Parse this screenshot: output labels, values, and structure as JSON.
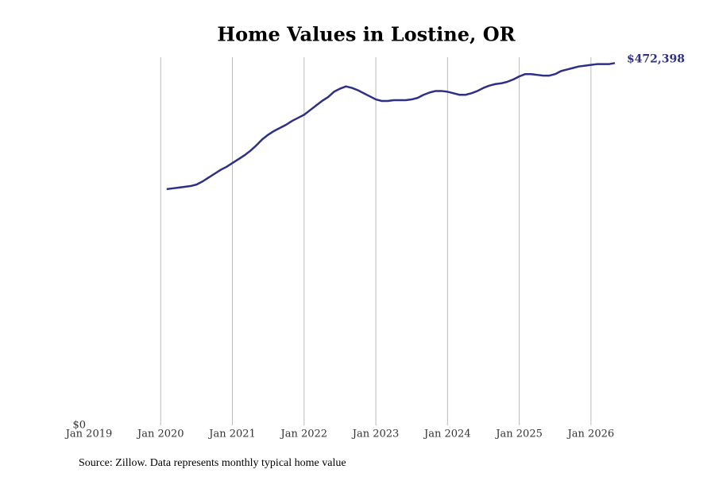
{
  "chart_data": {
    "type": "line",
    "title": "Home Values in Lostine, OR",
    "source": "Source: Zillow. Data represents monthly typical home value",
    "annotation": "$472,398",
    "x": [
      "2020-02",
      "2020-03",
      "2020-04",
      "2020-05",
      "2020-06",
      "2020-07",
      "2020-08",
      "2020-09",
      "2020-10",
      "2020-11",
      "2020-12",
      "2021-01",
      "2021-02",
      "2021-03",
      "2021-04",
      "2021-05",
      "2021-06",
      "2021-07",
      "2021-08",
      "2021-09",
      "2021-10",
      "2021-11",
      "2021-12",
      "2022-01",
      "2022-02",
      "2022-03",
      "2022-04",
      "2022-05",
      "2022-06",
      "2022-07",
      "2022-08",
      "2022-09",
      "2022-10",
      "2022-11",
      "2022-12",
      "2023-01",
      "2023-02",
      "2023-03",
      "2023-04",
      "2023-05",
      "2023-06",
      "2023-07",
      "2023-08",
      "2023-09",
      "2023-10",
      "2023-11",
      "2023-12",
      "2024-01",
      "2024-02",
      "2024-03",
      "2024-04",
      "2024-05",
      "2024-06",
      "2024-07",
      "2024-08",
      "2024-09",
      "2024-10",
      "2024-11",
      "2024-12",
      "2025-01",
      "2025-02",
      "2025-03",
      "2025-04",
      "2025-05",
      "2025-06",
      "2025-07",
      "2025-08",
      "2025-09",
      "2025-10",
      "2025-11",
      "2025-12",
      "2026-01",
      "2026-02",
      "2026-03",
      "2026-04",
      "2026-05"
    ],
    "series": [
      {
        "name": "Typical home value",
        "color": "#2e2f86",
        "values": [
          308000,
          309000,
          310000,
          311000,
          312000,
          314000,
          318000,
          323000,
          328000,
          333000,
          337000,
          342000,
          347000,
          352000,
          358000,
          365000,
          373000,
          379000,
          384000,
          388000,
          392000,
          397000,
          401000,
          405000,
          411000,
          417000,
          423000,
          428000,
          435000,
          439000,
          442000,
          440000,
          437000,
          433000,
          429000,
          425000,
          423000,
          423000,
          424000,
          424000,
          424000,
          425000,
          427000,
          431000,
          434000,
          436000,
          436000,
          435000,
          433000,
          431000,
          431000,
          433000,
          436000,
          440000,
          443000,
          445000,
          446000,
          448000,
          451000,
          455000,
          458000,
          458000,
          457000,
          456000,
          456000,
          458000,
          462000,
          464000,
          466000,
          468000,
          469000,
          470000,
          471000,
          471000,
          471000,
          472398
        ]
      }
    ],
    "xlim": [
      "2019-01",
      "2026-07"
    ],
    "xticks": [
      {
        "value": "2019-01",
        "label": "Jan 2019"
      },
      {
        "value": "2020-01",
        "label": "Jan 2020"
      },
      {
        "value": "2021-01",
        "label": "Jan 2021"
      },
      {
        "value": "2022-01",
        "label": "Jan 2022"
      },
      {
        "value": "2023-01",
        "label": "Jan 2023"
      },
      {
        "value": "2024-01",
        "label": "Jan 2024"
      },
      {
        "value": "2025-01",
        "label": "Jan 2025"
      },
      {
        "value": "2026-01",
        "label": "Jan 2026"
      }
    ],
    "ylim": [
      0,
      480000
    ],
    "yticks": [
      {
        "value": 0,
        "label": "$0"
      }
    ],
    "grid": true
  }
}
